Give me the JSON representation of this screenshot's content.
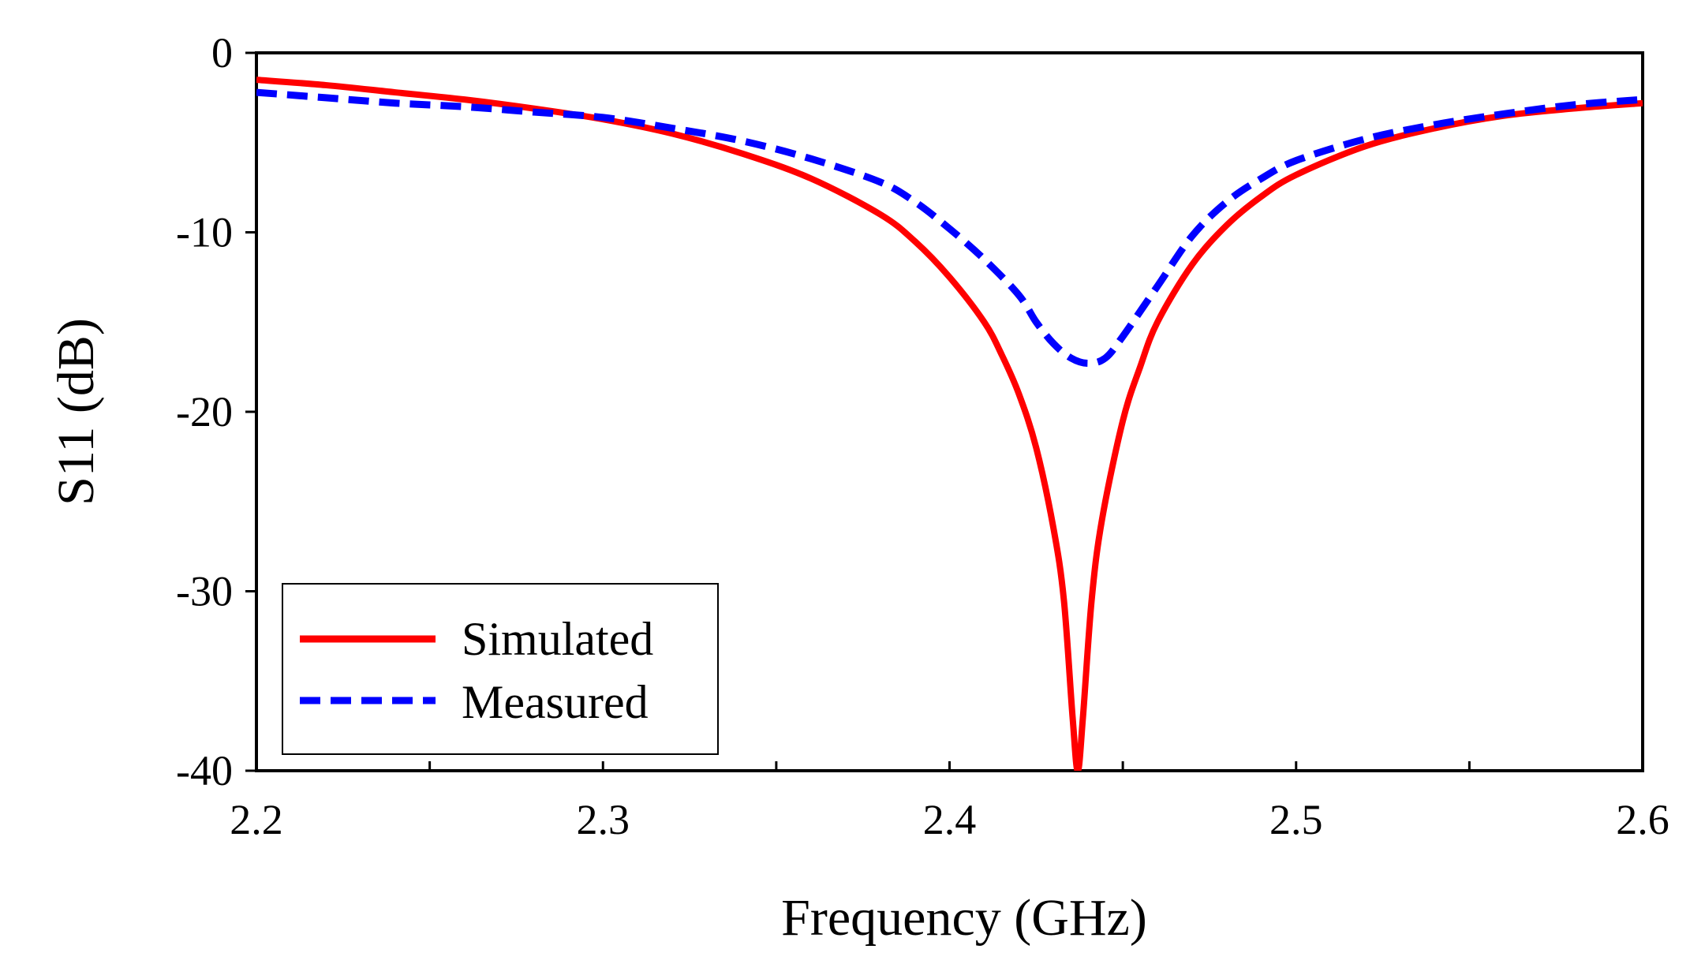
{
  "chart_data": {
    "type": "line",
    "xlabel": "Frequency (GHz)",
    "ylabel": "S11 (dB)",
    "xlim": [
      2.2,
      2.6
    ],
    "ylim": [
      -40,
      0
    ],
    "x_ticks": [
      "2.2",
      "2.3",
      "2.4",
      "2.5",
      "2.6"
    ],
    "x_minor_ticks": [
      2.25,
      2.35,
      2.45,
      2.55
    ],
    "y_ticks": [
      "0",
      "-10",
      "-20",
      "-30",
      "-40"
    ],
    "grid": false,
    "legend_position": "bottom-left",
    "series": [
      {
        "name": "Simulated",
        "color": "#ff0000",
        "style": "solid",
        "x": [
          2.2,
          2.22,
          2.24,
          2.26,
          2.28,
          2.3,
          2.32,
          2.34,
          2.36,
          2.38,
          2.39,
          2.4,
          2.41,
          2.415,
          2.42,
          2.425,
          2.43,
          2.433,
          2.4355,
          2.437,
          2.4385,
          2.441,
          2.444,
          2.45,
          2.455,
          2.46,
          2.47,
          2.48,
          2.49,
          2.5,
          2.52,
          2.54,
          2.56,
          2.58,
          2.6
        ],
        "values": [
          -1.5,
          -1.8,
          -2.2,
          -2.6,
          -3.1,
          -3.7,
          -4.5,
          -5.6,
          -7.0,
          -9.0,
          -10.5,
          -12.5,
          -15.0,
          -16.8,
          -19.0,
          -22.0,
          -26.5,
          -30.5,
          -37.0,
          -40.0,
          -37.0,
          -30.5,
          -26.0,
          -20.5,
          -17.5,
          -15.0,
          -11.8,
          -9.6,
          -8.0,
          -6.8,
          -5.2,
          -4.2,
          -3.5,
          -3.1,
          -2.8
        ]
      },
      {
        "name": "Measured",
        "color": "#0000ff",
        "style": "dashed",
        "x": [
          2.2,
          2.22,
          2.24,
          2.26,
          2.28,
          2.3,
          2.32,
          2.34,
          2.36,
          2.38,
          2.39,
          2.4,
          2.41,
          2.42,
          2.425,
          2.43,
          2.435,
          2.44,
          2.445,
          2.45,
          2.46,
          2.47,
          2.48,
          2.49,
          2.5,
          2.52,
          2.54,
          2.56,
          2.58,
          2.6
        ],
        "values": [
          -2.2,
          -2.5,
          -2.8,
          -3.0,
          -3.3,
          -3.6,
          -4.2,
          -4.9,
          -5.9,
          -7.2,
          -8.3,
          -9.8,
          -11.5,
          -13.5,
          -15.0,
          -16.2,
          -17.0,
          -17.3,
          -17.0,
          -15.8,
          -13.0,
          -10.2,
          -8.3,
          -7.0,
          -6.0,
          -4.8,
          -4.0,
          -3.4,
          -2.9,
          -2.6
        ]
      }
    ]
  }
}
